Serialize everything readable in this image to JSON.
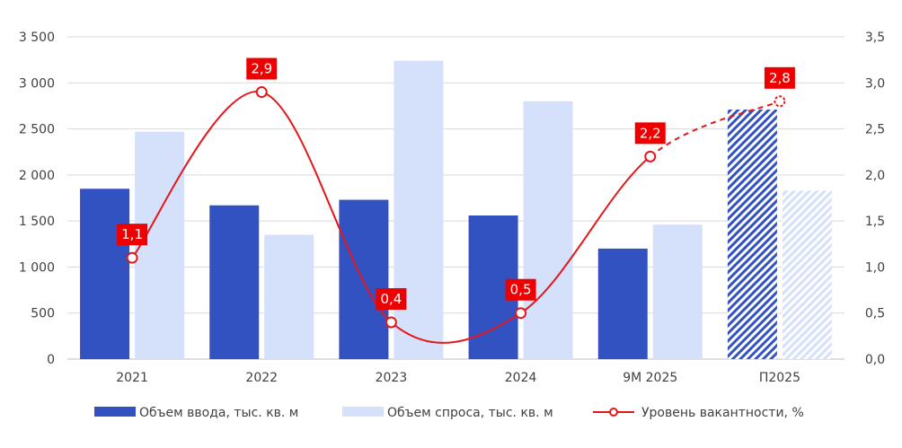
{
  "chart_data": {
    "type": "bar",
    "categories": [
      "2021",
      "2022",
      "2023",
      "2024",
      "9М 2025",
      "П2025"
    ],
    "forecast_category_index": 5,
    "series": [
      {
        "name": "Объем ввода, тыс. кв. м",
        "kind": "bar",
        "axis": "left",
        "color": "#3352c1",
        "values": [
          1850,
          1670,
          1730,
          1560,
          1200,
          2710
        ]
      },
      {
        "name": "Объем спроса, тыс. кв. м",
        "kind": "bar",
        "axis": "left",
        "color": "#d5e1fb",
        "values": [
          2470,
          1350,
          3240,
          2800,
          1460,
          1830
        ]
      },
      {
        "name": "Уровень вакантности, %",
        "kind": "line",
        "axis": "right",
        "color": "#e5161a",
        "values": [
          1.1,
          2.9,
          0.4,
          0.5,
          2.2,
          2.8
        ],
        "labels": [
          "1,1",
          "2,9",
          "0,4",
          "0,5",
          "2,2",
          "2,8"
        ]
      }
    ],
    "left_axis": {
      "min": 0,
      "max": 3500,
      "step": 500,
      "tick_labels": [
        "0",
        "500",
        "1 000",
        "1 500",
        "2 000",
        "2 500",
        "3 000",
        "3 500"
      ]
    },
    "right_axis": {
      "min": 0,
      "max": 3.5,
      "step": 0.5,
      "tick_labels": [
        "0,0",
        "0,5",
        "1,0",
        "1,5",
        "2,0",
        "2,5",
        "3,0",
        "3,5"
      ]
    },
    "grid": true,
    "legend_position": "bottom",
    "title": "",
    "xlabel": "",
    "ylabel": ""
  }
}
